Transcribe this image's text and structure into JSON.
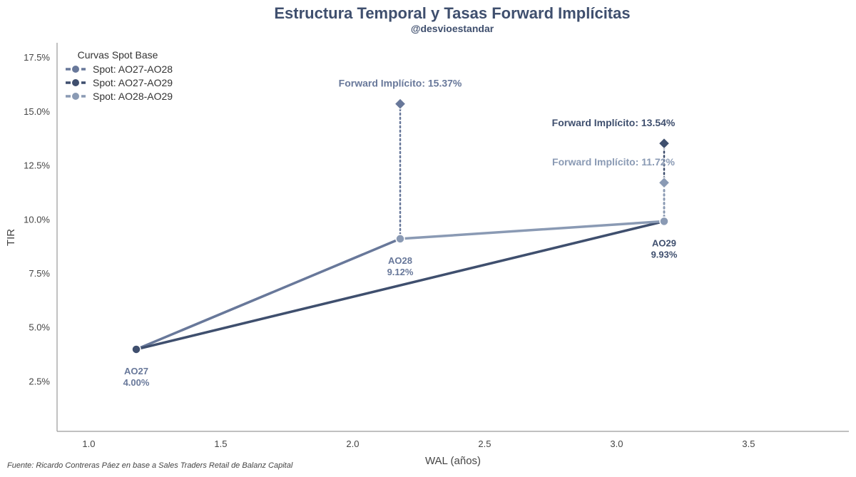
{
  "chart_data": {
    "type": "line",
    "title": "Estructura Temporal y Tasas Forward Implícitas",
    "subtitle": "@desvioestandar",
    "xlabel": "WAL (años)",
    "ylabel": "TIR",
    "xlim": [
      0.88,
      3.88
    ],
    "ylim": [
      0.2,
      18.2
    ],
    "x_ticks": [
      1.0,
      1.5,
      2.0,
      2.5,
      3.0,
      3.5
    ],
    "x_tick_labels": [
      "1.0",
      "1.5",
      "2.0",
      "2.5",
      "3.0",
      "3.5"
    ],
    "y_ticks": [
      2.5,
      5.0,
      7.5,
      10.0,
      12.5,
      15.0,
      17.5
    ],
    "y_tick_labels": [
      "2.5%",
      "5.0%",
      "7.5%",
      "10.0%",
      "12.5%",
      "15.0%",
      "17.5%"
    ],
    "grid": false,
    "legend_title": "Curvas Spot Base",
    "legend_position": "top-left",
    "points": [
      {
        "name": "AO27",
        "x": 1.18,
        "y": 4.0,
        "value_label": "4.00%",
        "color": "#3f4f6e"
      },
      {
        "name": "AO28",
        "x": 2.18,
        "y": 9.12,
        "value_label": "9.12%",
        "color": "#8a9ab4"
      },
      {
        "name": "AO29",
        "x": 3.18,
        "y": 9.93,
        "value_label": "9.93%",
        "color": "#8a9ab4"
      }
    ],
    "series": [
      {
        "name": "Spot: AO27-AO28",
        "color": "#68789a",
        "x": [
          1.18,
          2.18
        ],
        "y": [
          4.0,
          9.12
        ]
      },
      {
        "name": "Spot: AO27-AO29",
        "color": "#3f4f6e",
        "x": [
          1.18,
          3.18
        ],
        "y": [
          4.0,
          9.93
        ]
      },
      {
        "name": "Spot: AO28-AO29",
        "color": "#8a9ab4",
        "x": [
          2.18,
          3.18
        ],
        "y": [
          9.12,
          9.93
        ]
      }
    ],
    "forwards": [
      {
        "label": "Forward Implícito: 15.37%",
        "x": 2.18,
        "y": 15.37,
        "base_y": 9.12,
        "color": "#68789a"
      },
      {
        "label": "Forward Implícito: 13.54%",
        "x": 3.18,
        "y": 13.54,
        "base_y": 9.93,
        "color": "#3f4f6e"
      },
      {
        "label": "Forward Implícito: 11.72%",
        "x": 3.18,
        "y": 11.72,
        "base_y": 9.93,
        "color": "#8a9ab4"
      }
    ]
  },
  "title_color": "#3f4f6e",
  "axis_color": "#9a9a9a",
  "source": "Fuente: Ricardo Contreras Páez en base a Sales Traders Retail de Balanz Capital"
}
